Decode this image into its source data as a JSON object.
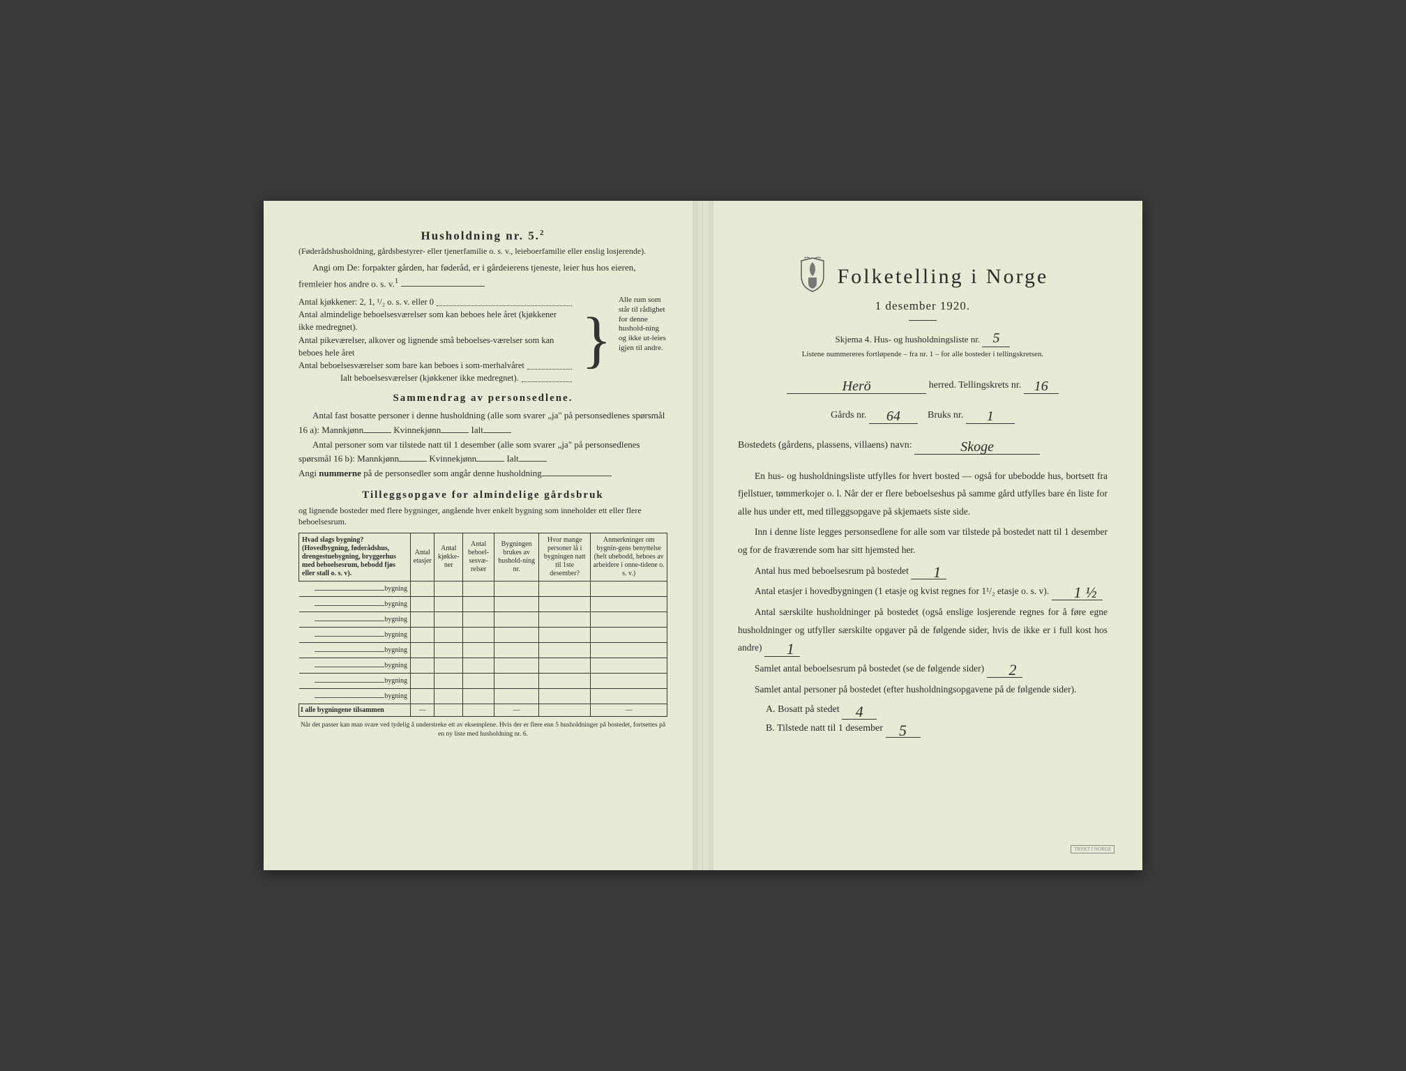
{
  "left": {
    "hh_title_prefix": "Husholdning nr. ",
    "hh_number": "5.",
    "hh_sup": "2",
    "paren1": "(Føderådshusholdning, gårdsbestyrer- eller tjenerfamilie o. s. v., leieboerfamilie eller enslig losjerende).",
    "angi_line": "Angi om De: forpakter gården, har føderåd, er i gårdeierens tjeneste, leier hus hos eieren, fremleier hos andre o. s. v.",
    "angi_sup": "1",
    "kitchens": "Antal kjøkkener: 2, 1, ¹/₂ o. s. v. eller 0",
    "rooms": [
      "Antal almindelige beboelsesværelser som kan beboes hele året (kjøkkener ikke medregnet).",
      "Antal pikeværelser, alkover og lignende små beboelses-værelser som kan beboes hele året",
      "Antal beboelsesværelser som bare kan beboes i som-merhalvåret",
      "Ialt beboelsesværelser (kjøkkener ikke medregnet)."
    ],
    "side_note": "Alle rum som står til rådighet for denne hushold-ning og ikke ut-leies igjen til andre.",
    "summary_title": "Sammendrag av personsedlene.",
    "sum_l1": "Antal fast bosatte personer i denne husholdning (alle som svarer „ja\" på personsedlenes spørsmål 16 a): Mannkjønn",
    "sum_kv": "Kvinnekjønn",
    "sum_ialt": "Ialt",
    "sum_l2": "Antal personer som var tilstede natt til 1 desember (alle som svarer „ja\" på personsedlenes spørsmål 16 b): Mannkjønn",
    "sum_l3_a": "Angi ",
    "sum_l3_b": "nummerne",
    "sum_l3_c": " på de personsedler som angår denne husholdning",
    "tillegg_title": "Tilleggsopgave for almindelige gårdsbruk",
    "tillegg_sub": "og lignende bosteder med flere bygninger, angående hver enkelt bygning som inneholder ett eller flere beboelsesrum.",
    "table": {
      "headers": [
        "Hvad slags bygning?\n(Hovedbygning, føderådshus, drengestuebygning, bryggerhus med beboelsesrum, bebodd fjøs eller stall o. s. v).",
        "Antal etasjer",
        "Antal kjøkke-ner",
        "Antal beboel-sesvæ-relser",
        "Bygningen brukes av hushold-ning nr.",
        "Hvor mange personer lå i bygningen natt til 1ste desember?",
        "Anmerkninger om bygnin-gens benyttelse (helt ubebodd, beboes av arbeidere i onne-tidene o. s. v.)"
      ],
      "row_label": "bygning",
      "row_count": 8,
      "total_label": "I alle bygningene tilsammen",
      "dash": "—"
    },
    "footnote": "Når det passer kan man svare ved tydelig å understreke ett av eksemplene.\nHvis der er flere enn 5 husholdninger på bostedet, fortsettes på en ny liste med husholdning nr. 6."
  },
  "right": {
    "title": "Folketelling i Norge",
    "date": "1 desember 1920.",
    "skjema": "Skjema 4.  Hus- og husholdningsliste nr.",
    "liste_nr": "5",
    "listene": "Listene nummereres fortløpende – fra nr. 1 – for alle bosteder i tellingskretsen.",
    "herred_val": "Herö",
    "herred_lbl": "herred.  Tellingskrets nr.",
    "krets_nr": "16",
    "gards_lbl": "Gårds nr.",
    "gards_nr": "64",
    "bruks_lbl": "Bruks nr.",
    "bruks_nr": "1",
    "bosted_lbl": "Bostedets (gårdens, plassens, villaens) navn:",
    "bosted_val": "Skoge",
    "para1": "En hus- og husholdningsliste utfylles for hvert bosted — også for ubebodde hus, bortsett fra fjellstuer, tømmerkojer o. l.  Når der er flere beboelseshus på samme gård utfylles bare én liste for alle hus under ett, med tilleggsopgave på skjemaets siste side.",
    "para2": "Inn i denne liste legges personsedlene for alle som var tilstede på bostedet natt til 1 desember og for de fraværende som har sitt hjemsted her.",
    "q1": "Antal hus med beboelsesrum på bostedet",
    "q1_val": "1",
    "q2a": "Antal etasjer i hovedbygningen (1 etasje og kvist regnes for 1¹/₂ etasje o. s. v).",
    "q2_val": "1 ½",
    "q3": "Antal særskilte husholdninger på bostedet (også enslige losjerende regnes for å føre egne husholdninger og utfyller særskilte opgaver på de følgende sider, hvis de ikke er i full kost hos andre)",
    "q3_val": "1",
    "q4": "Samlet antal beboelsesrum på bostedet (se de følgende sider)",
    "q4_val": "2",
    "q5": "Samlet antal personer på bostedet (efter husholdningsopgavene på de følgende sider).",
    "qa_lbl": "A.  Bosatt på stedet",
    "qa_val": "4",
    "qb_lbl": "B.  Tilstede natt til 1 desember",
    "qb_val": "5",
    "stamp": "TRYKT I NORGE"
  }
}
